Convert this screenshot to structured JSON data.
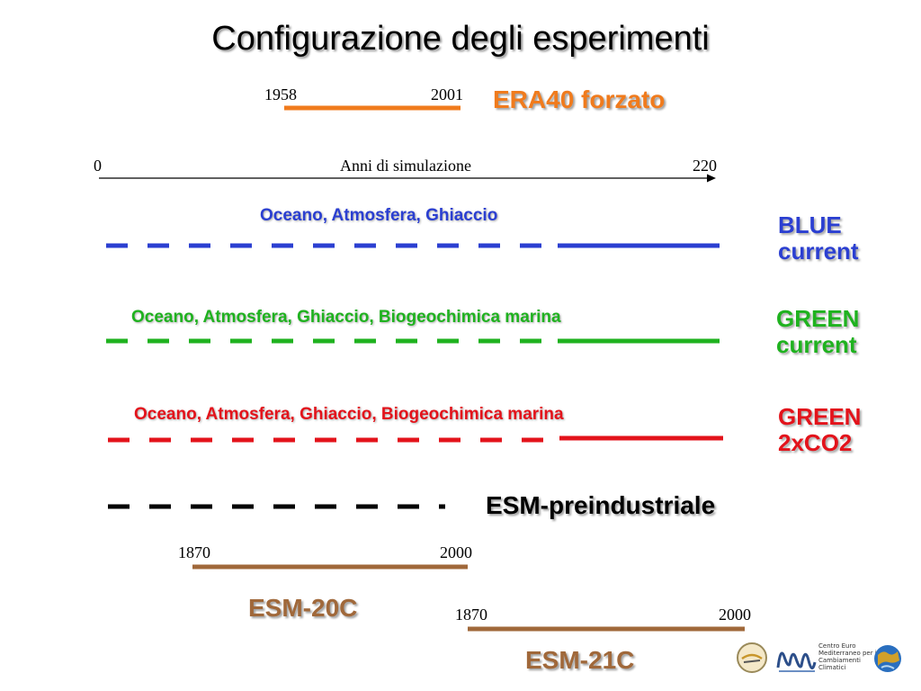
{
  "title": "Configurazione degli esperimenti",
  "era40": {
    "start": "1958",
    "end": "2001",
    "label": "ERA40 forzato",
    "color": "#f07b1d"
  },
  "axis": {
    "start": "0",
    "label": "Anni di simulazione",
    "end": "220"
  },
  "experiments": [
    {
      "components": "Oceano, Atmosfera, Ghiaccio",
      "label": "BLUE current",
      "color": "#2b3fd1"
    },
    {
      "components": "Oceano, Atmosfera, Ghiaccio, Biogeochimica marina",
      "label": "GREEN current",
      "color": "#1fb21f"
    },
    {
      "components": "Oceano, Atmosfera, Ghiaccio, Biogeochimica marina",
      "label": "GREEN 2xCO2",
      "color": "#e3131b"
    }
  ],
  "preindustrial": {
    "label": "ESM-preindustriale",
    "color": "#000000"
  },
  "esm20c": {
    "start": "1870",
    "end": "2000",
    "label": "ESM-20C",
    "color": "#a0683a"
  },
  "esm21c": {
    "start": "1870",
    "end": "2000",
    "label": "ESM-21C",
    "color": "#a0683a"
  },
  "logos": {
    "cmcc_text": "Centro Euro Mediterraneo per i Cambiamenti Climatici"
  }
}
